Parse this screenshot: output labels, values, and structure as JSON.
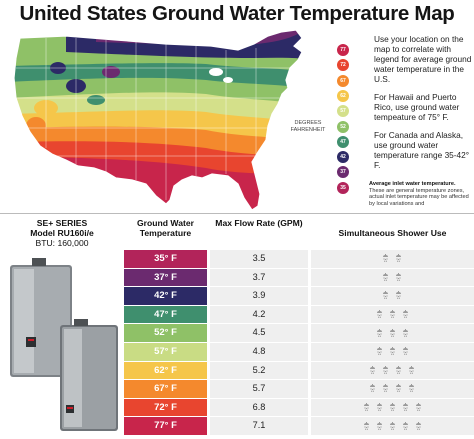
{
  "title": "United States Ground Water Temperature Map",
  "map": {
    "degrees_label": "DEGREES\nFAHRENHEIT",
    "legend": [
      {
        "value": "77",
        "color": "#c8254b"
      },
      {
        "value": "72",
        "color": "#e8452f"
      },
      {
        "value": "67",
        "color": "#f4892d"
      },
      {
        "value": "62",
        "color": "#f5c64a"
      },
      {
        "value": "57",
        "color": "#d4e08a"
      },
      {
        "value": "52",
        "color": "#8fc167"
      },
      {
        "value": "47",
        "color": "#3f8f6e"
      },
      {
        "value": "42",
        "color": "#2c2a66"
      },
      {
        "value": "37",
        "color": "#6b2a6f"
      },
      {
        "value": "35",
        "color": "#b2245a"
      }
    ]
  },
  "notes": {
    "location": "Use your location on the map to correlate with legend for average ground water temperature in the U.S.",
    "hawaii": "For Hawaii and Puerto Rico, use ground water tempeature of 75° F.",
    "canada": "For Canada and Alaska, use ground water temperature range 35-42° F.",
    "avg_title": "Average inlet water temperature.",
    "avg_body": "These are general temperature zones, actual inlet temperature may be affected by local variations and"
  },
  "product": {
    "series": "SE+ SERIES",
    "model": "Model RU160i/e",
    "btu": "BTU: 160,000"
  },
  "table": {
    "col_temp": "Ground Water Temperature",
    "col_flow": "Max Flow Rate (GPM)",
    "col_shower": "Simultaneous Shower Use",
    "rows": [
      {
        "temp": "35° F",
        "flow": "3.5",
        "showers": 2,
        "color": "#b2245a"
      },
      {
        "temp": "37° F",
        "flow": "3.7",
        "showers": 2,
        "color": "#6b2a6f"
      },
      {
        "temp": "42° F",
        "flow": "3.9",
        "showers": 2,
        "color": "#2c2a66"
      },
      {
        "temp": "47° F",
        "flow": "4.2",
        "showers": 3,
        "color": "#3f8f6e"
      },
      {
        "temp": "52° F",
        "flow": "4.5",
        "showers": 3,
        "color": "#8fc167"
      },
      {
        "temp": "57° F",
        "flow": "4.8",
        "showers": 3,
        "color": "#c9dc84"
      },
      {
        "temp": "62° F",
        "flow": "5.2",
        "showers": 4,
        "color": "#f5c64a"
      },
      {
        "temp": "67° F",
        "flow": "5.7",
        "showers": 4,
        "color": "#f4892d"
      },
      {
        "temp": "72° F",
        "flow": "6.8",
        "showers": 5,
        "color": "#e8452f"
      },
      {
        "temp": "77° F",
        "flow": "7.1",
        "showers": 5,
        "color": "#c8254b"
      }
    ]
  }
}
